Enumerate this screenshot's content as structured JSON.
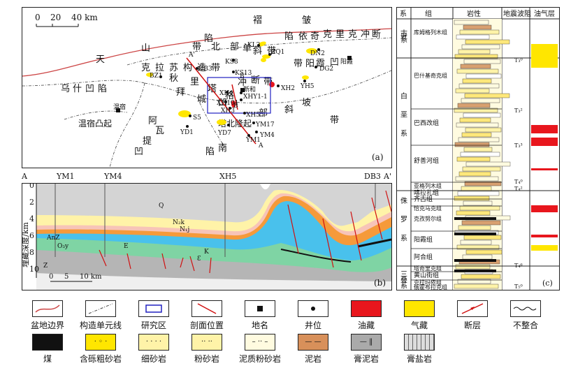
{
  "panel_a": {
    "label": "(a)",
    "scale": {
      "zero": "0",
      "mid": "20",
      "end": "40 km"
    },
    "regions": [
      "天",
      "山",
      "乌",
      "什",
      "凹",
      "陷",
      "温宿凸起",
      "阿",
      "瓦",
      "提",
      "凹",
      "陷",
      "褶",
      "皱",
      "带",
      "北",
      "部",
      "单",
      "斜",
      "带",
      "秋",
      "里",
      "塔",
      "格",
      "冲",
      "断",
      "带",
      "拜",
      "城",
      "凹",
      "陷",
      "依",
      "奇",
      "克",
      "里",
      "克",
      "冲",
      "断",
      "带",
      "阳",
      "霞",
      "凹",
      "陷",
      "南",
      "部",
      "斜",
      "坡",
      "带",
      "塔北隆起",
      "克",
      "拉",
      "苏",
      "构",
      "造",
      "带"
    ],
    "places": [
      "温宿",
      "阳霞"
    ],
    "wells": [
      "KL2",
      "ZQ1",
      "DN2",
      "KS8",
      "KS13",
      "DG2",
      "BZ1",
      "DB3",
      "XH4",
      "新和",
      "XHY1-1",
      "XH101",
      "XH3",
      "XH5",
      "XH2",
      "YH5",
      "S5",
      "YD1",
      "YD7",
      "YM17",
      "YM4",
      "YM1",
      "YM10"
    ],
    "section_ends": [
      "A'",
      "B'",
      "B",
      "A"
    ]
  },
  "panel_b": {
    "label": "(b)",
    "wells": [
      "A",
      "YM1",
      "YM4",
      "XH5",
      "DB3",
      "A'"
    ],
    "ylabel": "埋藏深度/km",
    "yticks": [
      "0",
      "2",
      "4",
      "6",
      "8",
      "10"
    ],
    "scale": {
      "zero": "0",
      "mid": "5",
      "end": "10 km"
    },
    "units": [
      "Q",
      "N₂k",
      "N₁j",
      "E",
      "K",
      "AnZ",
      "O₃y",
      "Z",
      "Ɛ"
    ]
  },
  "panel_c": {
    "label": "(c)",
    "headers": [
      "系",
      "组",
      "岩性",
      "地震波阻",
      "油气层"
    ],
    "systems": [
      "古近系",
      "白垩系",
      "侏罗系",
      "三叠系"
    ],
    "formations": [
      "库姆格列木组",
      "巴什基奇克组",
      "巴西改组",
      "舒善河组",
      "亚格列木组",
      "喀拉扎组",
      "齐古组",
      "恰克马克组",
      "克孜努尔组",
      "阳霞组",
      "阿合组",
      "塔奇里克组",
      "黄山街组",
      "克拉玛依组",
      "俄霍布拉克组"
    ],
    "horizons": [
      "T₃⁰",
      "T₃²",
      "T₃³",
      "T₄⁰",
      "T₄²",
      "T₄⁶",
      "T₅⁰"
    ]
  },
  "legend": [
    {
      "label": "盆地边界",
      "icon": "basin-boundary"
    },
    {
      "label": "构造单元线",
      "icon": "structural-unit-line"
    },
    {
      "label": "研究区",
      "icon": "study-area"
    },
    {
      "label": "剖面位置",
      "icon": "profile-position"
    },
    {
      "label": "地名",
      "icon": "place-name"
    },
    {
      "label": "井位",
      "icon": "well-location"
    },
    {
      "label": "油藏",
      "icon": "oil-reservoir"
    },
    {
      "label": "气藏",
      "icon": "gas-reservoir"
    },
    {
      "label": "断层",
      "icon": "fault"
    },
    {
      "label": "不整合",
      "icon": "unconformity"
    },
    {
      "label": "煤",
      "icon": "coal"
    },
    {
      "label": "含砾粗砂岩",
      "icon": "pebbly-sandstone"
    },
    {
      "label": "细砂岩",
      "icon": "fine-sandstone"
    },
    {
      "label": "粉砂岩",
      "icon": "siltstone"
    },
    {
      "label": "泥质粉砂岩",
      "icon": "muddy-siltstone"
    },
    {
      "label": "泥岩",
      "icon": "mudstone"
    },
    {
      "label": "膏泥岩",
      "icon": "gypsum-mudstone"
    },
    {
      "label": "膏盐岩",
      "icon": "gypsum-salt"
    }
  ],
  "colors": {
    "oil": "#e8161d",
    "gas": "#ffe600",
    "study": "#2020c0",
    "profile": "#d01010"
  }
}
